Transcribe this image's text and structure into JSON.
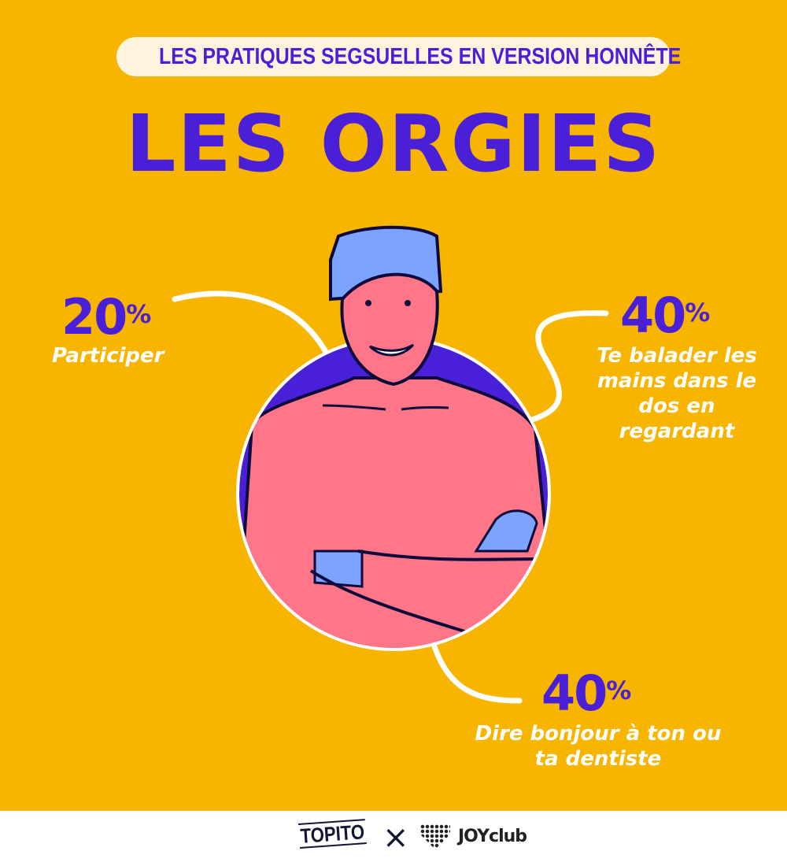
{
  "header": {
    "kicker": "LES PRATIQUES SEGSUELLES EN VERSION HONNÊTE",
    "title": "LES ORGIES"
  },
  "stats": [
    {
      "value": "20",
      "unit": "%",
      "label": "Participer"
    },
    {
      "value": "40",
      "unit": "%",
      "label": "Te balader les mains dans le dos en regardant"
    },
    {
      "value": "40",
      "unit": "%",
      "label": "Dire bonjour à ton ou ta dentiste"
    }
  ],
  "footer": {
    "brand1": "TOPITO",
    "separator": "×",
    "brand2": "JOYclub"
  },
  "colors": {
    "background": "#F8B500",
    "accent": "#4A1FD8",
    "skin": "#FF7689",
    "cap": "#7BA3FF",
    "outline": "#0E0A3C"
  }
}
